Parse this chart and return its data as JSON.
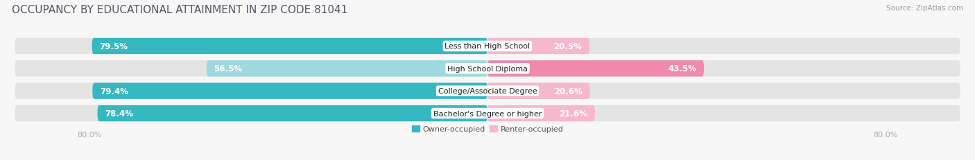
{
  "title": "OCCUPANCY BY EDUCATIONAL ATTAINMENT IN ZIP CODE 81041",
  "source": "Source: ZipAtlas.com",
  "categories": [
    "Less than High School",
    "High School Diploma",
    "College/Associate Degree",
    "Bachelor's Degree or higher"
  ],
  "owner_pct": [
    79.5,
    56.5,
    79.4,
    78.4
  ],
  "renter_pct": [
    20.5,
    43.5,
    20.6,
    21.6
  ],
  "owner_color": "#35b8c0",
  "renter_color": "#f08aaa",
  "owner_color_light": "#9dd9de",
  "renter_color_light": "#f5b8ce",
  "background_color": "#f7f7f7",
  "bar_bg_color": "#e4e4e4",
  "legend_owner": "Owner-occupied",
  "legend_renter": "Renter-occupied",
  "title_fontsize": 11,
  "label_fontsize": 8.5,
  "tick_fontsize": 8,
  "source_fontsize": 7.5,
  "cat_fontsize": 8.0
}
